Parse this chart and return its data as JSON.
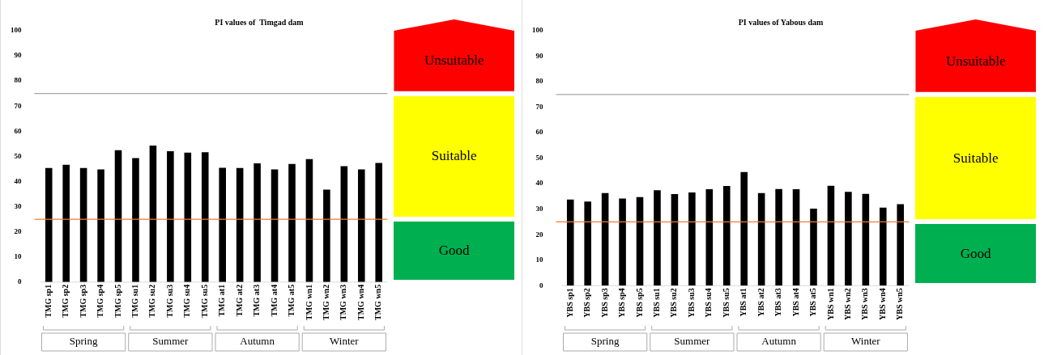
{
  "chart_data": [
    {
      "type": "bar",
      "title": "PI values of  Timgad dam",
      "categories": [
        "TMG sp1",
        "TMG sp2",
        "TMG sp3",
        "TMG sp4",
        "TMG sp5",
        "TMG su1",
        "TMG su2",
        "TMG su3",
        "TMG su4",
        "TMG su5",
        "TMG at1",
        "TMG at2",
        "TMG at3",
        "TMG at4",
        "TMG at5",
        "TMG wn1",
        "TMG wn2",
        "TMG wn3",
        "TMG wn4",
        "TMG wn5"
      ],
      "values": [
        45.4,
        46.7,
        45.4,
        44.8,
        52.5,
        49.3,
        54.3,
        52.1,
        51.5,
        51.7,
        45.5,
        45.4,
        47.2,
        44.8,
        47.0,
        48.9,
        36.8,
        46.1,
        44.8,
        47.4
      ],
      "color": "#000000",
      "ylim": [
        0,
        100
      ],
      "yticks": [
        0,
        10,
        20,
        30,
        40,
        50,
        60,
        70,
        80,
        90,
        100
      ],
      "grid": false,
      "legend": false,
      "ref_lines": [
        {
          "axis": "y",
          "value": 25,
          "color": "#ed7d31"
        },
        {
          "axis": "y",
          "value": 75,
          "color": "#a6a6a6"
        }
      ],
      "annotations": [
        "Spring",
        "Summer",
        "Autumn",
        "Winter",
        "Good",
        "Suitable",
        "Unsuitable"
      ]
    },
    {
      "type": "bar",
      "title": "PI values of Yabous dam",
      "categories": [
        "YBS sp1",
        "YBS sp2",
        "YBS sp3",
        "YBS sp4",
        "YBS sp5",
        "YBS su1",
        "YBS su2",
        "YBS su3",
        "YBS su4",
        "YBS su5",
        "YBS at1",
        "YBS at2",
        "YBS at3",
        "YBS at4",
        "YBS at5",
        "YBS wn1",
        "YBS wn2",
        "YBS wn3",
        "YBS wn4",
        "YBS wn5"
      ],
      "values": [
        33.8,
        33.0,
        36.3,
        34.2,
        34.7,
        37.4,
        35.9,
        36.6,
        37.8,
        39.1,
        44.6,
        36.3,
        37.9,
        37.8,
        30.2,
        39.2,
        36.8,
        36.0,
        30.6,
        32.0
      ],
      "color": "#000000",
      "ylim": [
        0,
        100
      ],
      "yticks": [
        0,
        10,
        20,
        30,
        40,
        50,
        60,
        70,
        80,
        90,
        100
      ],
      "grid": false,
      "legend": false,
      "ref_lines": [
        {
          "axis": "y",
          "value": 25,
          "color": "#ed7d31"
        },
        {
          "axis": "y",
          "value": 75,
          "color": "#a6a6a6"
        }
      ],
      "annotations": [
        "Spring",
        "Summer",
        "Autumn",
        "Winter",
        "Good",
        "Suitable",
        "Unsuitable"
      ]
    }
  ]
}
